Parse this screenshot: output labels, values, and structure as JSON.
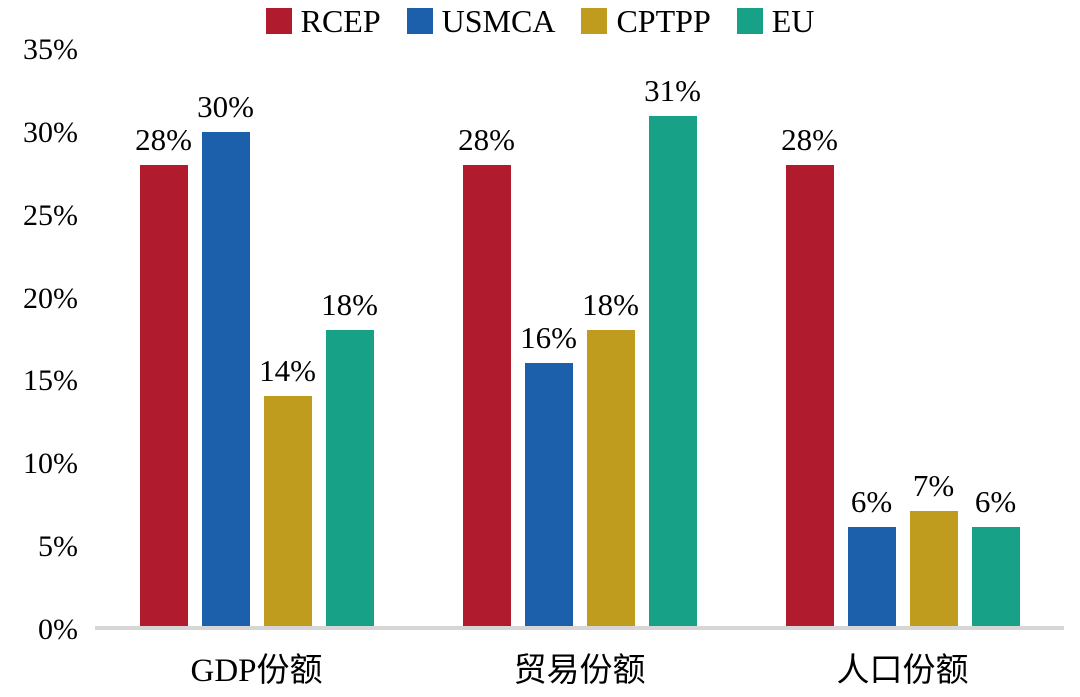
{
  "chart_data": {
    "type": "bar",
    "title": "",
    "xlabel": "",
    "ylabel": "",
    "categories": [
      "GDP份额",
      "贸易份额",
      "人口份额"
    ],
    "series": [
      {
        "name": "RCEP",
        "color": "#b01c2e",
        "values": [
          28,
          28,
          28
        ]
      },
      {
        "name": "USMCA",
        "color": "#1c60ac",
        "values": [
          30,
          16,
          6
        ]
      },
      {
        "name": "CPTPP",
        "color": "#bf9b1e",
        "values": [
          14,
          18,
          7
        ]
      },
      {
        "name": "EU",
        "color": "#17a287",
        "values": [
          18,
          31,
          6
        ]
      }
    ],
    "label_suffix": "%",
    "ylim": [
      0,
      35
    ],
    "yticks": [
      "35%",
      "30%",
      "25%",
      "20%",
      "15%",
      "10%",
      "5%",
      "0%"
    ],
    "grid": false,
    "legend_position": "top",
    "baseline_color": "#d6d6d6"
  }
}
